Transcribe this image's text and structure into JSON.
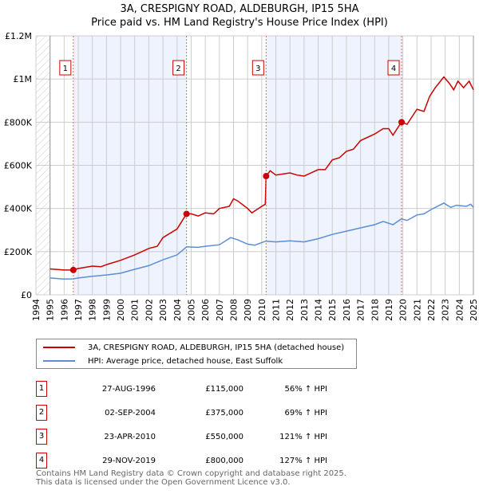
{
  "title_line1": "3A, CRESPIGNY ROAD, ALDEBURGH, IP15 5HA",
  "title_line2": "Price paid vs. HM Land Registry's House Price Index (HPI)",
  "chart_data": {
    "type": "line",
    "title": "3A, CRESPIGNY ROAD, ALDEBURGH, IP15 5HA - Price paid vs. HM Land Registry's House Price Index (HPI)",
    "xlim": [
      1994,
      2025
    ],
    "ylim": [
      0,
      1200000
    ],
    "y_ticks": [
      {
        "v": 0,
        "label": "£0"
      },
      {
        "v": 200000,
        "label": "£200K"
      },
      {
        "v": 400000,
        "label": "£400K"
      },
      {
        "v": 600000,
        "label": "£600K"
      },
      {
        "v": 800000,
        "label": "£800K"
      },
      {
        "v": 1000000,
        "label": "£1M"
      },
      {
        "v": 1200000,
        "label": "£1.2M"
      }
    ],
    "x_ticks": [
      "1994",
      "1995",
      "1996",
      "1997",
      "1998",
      "1999",
      "2000",
      "2001",
      "2002",
      "2003",
      "2004",
      "2005",
      "2006",
      "2007",
      "2008",
      "2009",
      "2010",
      "2011",
      "2012",
      "2013",
      "2014",
      "2015",
      "2016",
      "2017",
      "2018",
      "2019",
      "2020",
      "2021",
      "2022",
      "2023",
      "2024",
      "2025"
    ],
    "grid": true,
    "series": [
      {
        "name": "3A, CRESPIGNY ROAD, ALDEBURGH, IP15 5HA (detached house)",
        "color": "#cc0000",
        "x": [
          1995,
          1996,
          1996.65,
          1997,
          1998,
          1998.6,
          1999,
          2000,
          2001,
          2002,
          2002.6,
          2003,
          2004,
          2004.67,
          2005,
          2005.5,
          2006,
          2006.6,
          2007,
          2007.7,
          2008,
          2008.3,
          2009,
          2009.3,
          2010,
          2010.25,
          2010.31,
          2010.6,
          2011,
          2012,
          2012.5,
          2013,
          2014,
          2014.5,
          2015,
          2015.5,
          2016,
          2016.5,
          2017,
          2018,
          2018.6,
          2019,
          2019.3,
          2019.9,
          2020.3,
          2021,
          2021.5,
          2021.9,
          2022.3,
          2022.9,
          2023.3,
          2023.6,
          2023.9,
          2024.3,
          2024.7,
          2025
        ],
        "values": [
          120000,
          115000,
          115000,
          122000,
          133000,
          130000,
          140000,
          160000,
          185000,
          215000,
          225000,
          265000,
          305000,
          375000,
          375000,
          365000,
          380000,
          375000,
          400000,
          410000,
          445000,
          435000,
          400000,
          380000,
          410000,
          420000,
          550000,
          575000,
          555000,
          565000,
          555000,
          550000,
          580000,
          580000,
          625000,
          635000,
          665000,
          675000,
          715000,
          745000,
          770000,
          770000,
          740000,
          800000,
          790000,
          860000,
          850000,
          920000,
          960000,
          1010000,
          980000,
          950000,
          990000,
          960000,
          990000,
          950000
        ]
      },
      {
        "name": "HPI: Average price, detached house, East Suffolk",
        "color": "#5b8ed6",
        "x": [
          1995,
          1996,
          1996.65,
          1997,
          1998,
          1999,
          2000,
          2001,
          2002,
          2003,
          2004,
          2004.67,
          2005.5,
          2006,
          2007,
          2007.8,
          2008.3,
          2009,
          2009.5,
          2010.3,
          2011,
          2012,
          2013,
          2014,
          2015,
          2016,
          2017,
          2018,
          2018.6,
          2019.3,
          2019.9,
          2020.3,
          2021,
          2021.5,
          2022,
          2022.9,
          2023.4,
          2023.8,
          2024.5,
          2024.8,
          2025
        ],
        "values": [
          78000,
          73000,
          74000,
          78000,
          86000,
          92000,
          100000,
          118000,
          135000,
          162000,
          185000,
          222000,
          220000,
          225000,
          232000,
          265000,
          255000,
          235000,
          230000,
          249000,
          245000,
          250000,
          245000,
          260000,
          280000,
          295000,
          310000,
          325000,
          340000,
          325000,
          352000,
          345000,
          370000,
          375000,
          395000,
          425000,
          405000,
          415000,
          410000,
          420000,
          405000
        ]
      }
    ],
    "sales": [
      {
        "label": "1",
        "x": 1996.65,
        "value": 115000
      },
      {
        "label": "2",
        "x": 2004.67,
        "value": 375000
      },
      {
        "label": "3",
        "x": 2010.31,
        "value": 550000
      },
      {
        "label": "4",
        "x": 2019.91,
        "value": 800000
      }
    ],
    "legend_position": "below"
  },
  "legend": {
    "property": "3A, CRESPIGNY ROAD, ALDEBURGH, IP15 5HA (detached house)",
    "hpi": "HPI: Average price, detached house, East Suffolk"
  },
  "sales_table": [
    {
      "num": "1",
      "date": "27-AUG-1996",
      "price": "£115,000",
      "hpi": "56% ↑ HPI"
    },
    {
      "num": "2",
      "date": "02-SEP-2004",
      "price": "£375,000",
      "hpi": "69% ↑ HPI"
    },
    {
      "num": "3",
      "date": "23-APR-2010",
      "price": "£550,000",
      "hpi": "121% ↑ HPI"
    },
    {
      "num": "4",
      "date": "29-NOV-2019",
      "price": "£800,000",
      "hpi": "127% ↑ HPI"
    }
  ],
  "footer_line1": "Contains HM Land Registry data © Crown copyright and database right 2025.",
  "footer_line2": "This data is licensed under the Open Government Licence v3.0."
}
